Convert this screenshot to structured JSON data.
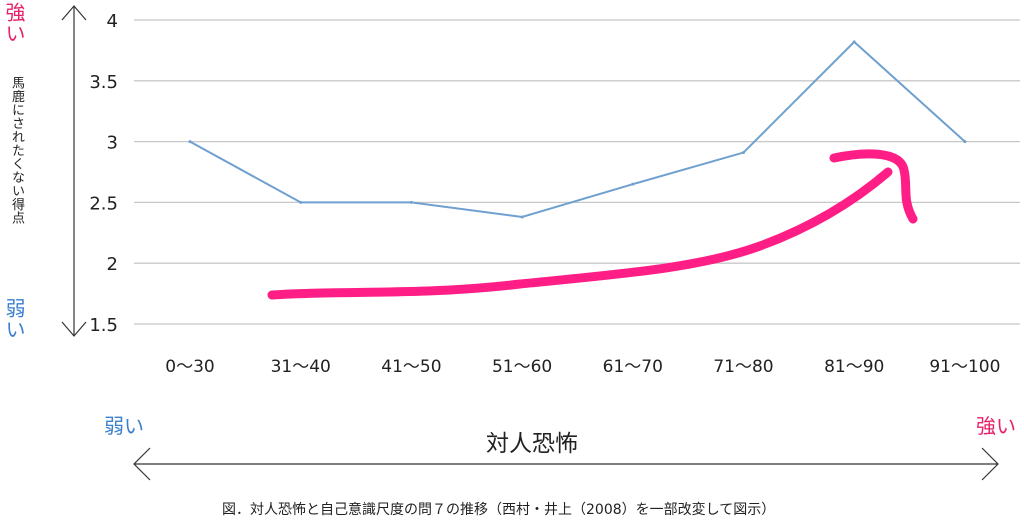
{
  "chart_data": {
    "type": "line",
    "categories": [
      "0～30",
      "31～40",
      "41～50",
      "51～60",
      "61～70",
      "71～80",
      "81～90",
      "91～100"
    ],
    "series": [
      {
        "values": [
          3.0,
          2.5,
          2.5,
          2.38,
          2.65,
          2.91,
          3.82,
          3.0
        ]
      }
    ],
    "ylim": [
      1.5,
      4
    ],
    "yticks": [
      "4",
      "3.5",
      "3",
      "2.5",
      "2",
      "1.5"
    ],
    "ylabel": "馬鹿にされたくない得点",
    "xlabel": "対人恐怖",
    "grid": "horizontal",
    "colors": {
      "line": "#6fa0d0",
      "grid": "#c8c8c8",
      "strong": "#e8206a",
      "weak": "#3a7fd0",
      "arrow": "#ff1e86"
    },
    "annotation": "hand-drawn pink arrow rising to the right"
  },
  "labels": {
    "y_strong": "強い",
    "y_weak": "弱い",
    "x_weak": "弱い",
    "x_strong": "強い"
  },
  "caption": "図．対人恐怖と自己意識尺度の問７の推移（西村・井上（2008）を一部改変して図示）"
}
